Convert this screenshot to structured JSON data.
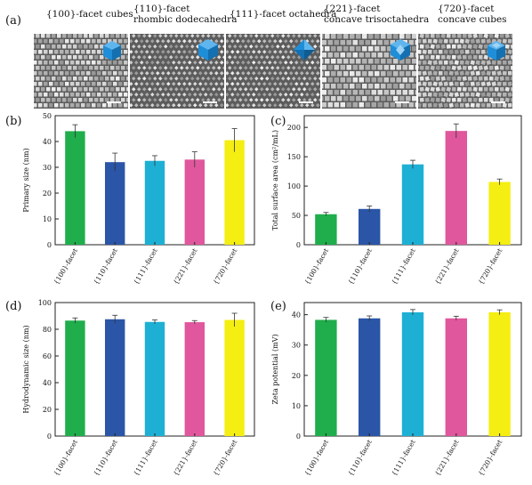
{
  "figure": {
    "panel_a": {
      "letter": "(a)",
      "images": [
        {
          "line1": "{100}-facet cubes",
          "line2": "",
          "icon": "cube-crystal-icon",
          "color": "#1f8ed8",
          "pattern": "cubes"
        },
        {
          "line1": "{110}-facet",
          "line2": "rhombic dodecahedra",
          "icon": "rhombic-dodecahedron-crystal-icon",
          "color": "#1f8ed8",
          "pattern": "dodeca"
        },
        {
          "line1": "{111}-facet octahedra",
          "line2": "",
          "icon": "octahedron-crystal-icon",
          "color": "#1f8ed8",
          "pattern": "octa"
        },
        {
          "line1": "{221}-facet",
          "line2": "concave trisoctahedra",
          "icon": "trisoctahedron-crystal-icon",
          "color": "#1f8ed8",
          "pattern": "triso"
        },
        {
          "line1": "{720}-facet",
          "line2": "concave cubes",
          "icon": "concave-cube-crystal-icon",
          "color": "#1f8ed8",
          "pattern": "concave"
        }
      ]
    }
  },
  "chart_data": [
    {
      "panel": "(b)",
      "type": "bar",
      "categories": [
        "{100}-facet",
        "{110}-facet",
        "{111}-facet",
        "{221}-facet",
        "{720}-facet"
      ],
      "values": [
        44,
        32,
        32.5,
        33,
        40.5
      ],
      "errors": [
        2.5,
        3.5,
        2.0,
        3.0,
        4.5
      ],
      "colors": [
        "#1fae4b",
        "#2b55a6",
        "#1eb0d4",
        "#e0579d",
        "#f4ee12"
      ],
      "title": "",
      "xlabel": "",
      "ylabel": "Primary size (nm)",
      "ylim": [
        0,
        50
      ],
      "yticks": [
        0,
        10,
        20,
        30,
        40,
        50
      ]
    },
    {
      "panel": "(c)",
      "type": "bar",
      "categories": [
        "{100}-facet",
        "{110}-facet",
        "{111}-facet",
        "{221}-facet",
        "{720}-facet"
      ],
      "values": [
        52,
        61,
        137,
        194,
        107
      ],
      "errors": [
        3,
        5,
        7,
        12,
        5
      ],
      "colors": [
        "#1fae4b",
        "#2b55a6",
        "#1eb0d4",
        "#e0579d",
        "#f4ee12"
      ],
      "title": "",
      "xlabel": "",
      "ylabel": "Total surface area (cm²/mL)",
      "ylim": [
        0,
        220
      ],
      "yticks": [
        0,
        50,
        100,
        150,
        200
      ]
    },
    {
      "panel": "(d)",
      "type": "bar",
      "categories": [
        "{100}-facet",
        "{110}-facet",
        "{111}-facet",
        "{221}-facet",
        "{720}-facet"
      ],
      "values": [
        86.5,
        87.5,
        85.5,
        85.3,
        87
      ],
      "errors": [
        2,
        3,
        1.5,
        1.2,
        5
      ],
      "colors": [
        "#1fae4b",
        "#2b55a6",
        "#1eb0d4",
        "#e0579d",
        "#f4ee12"
      ],
      "title": "",
      "xlabel": "",
      "ylabel": "Hydrodynamic size (nm)",
      "ylim": [
        0,
        100
      ],
      "yticks": [
        0,
        20,
        40,
        60,
        80,
        100
      ]
    },
    {
      "panel": "(e)",
      "type": "bar",
      "categories": [
        "{100}-facet",
        "{110}-facet",
        "{111}-facet",
        "{221}-facet",
        "{720}-facet"
      ],
      "values": [
        38.3,
        38.8,
        40.8,
        38.8,
        40.8
      ],
      "errors": [
        0.8,
        0.8,
        0.9,
        0.7,
        0.8
      ],
      "colors": [
        "#1fae4b",
        "#2b55a6",
        "#1eb0d4",
        "#e0579d",
        "#f4ee12"
      ],
      "title": "",
      "xlabel": "",
      "ylabel": "Zeta potential (mV)",
      "ylim": [
        0,
        44
      ],
      "yticks": [
        0,
        10,
        20,
        30,
        40
      ]
    }
  ]
}
